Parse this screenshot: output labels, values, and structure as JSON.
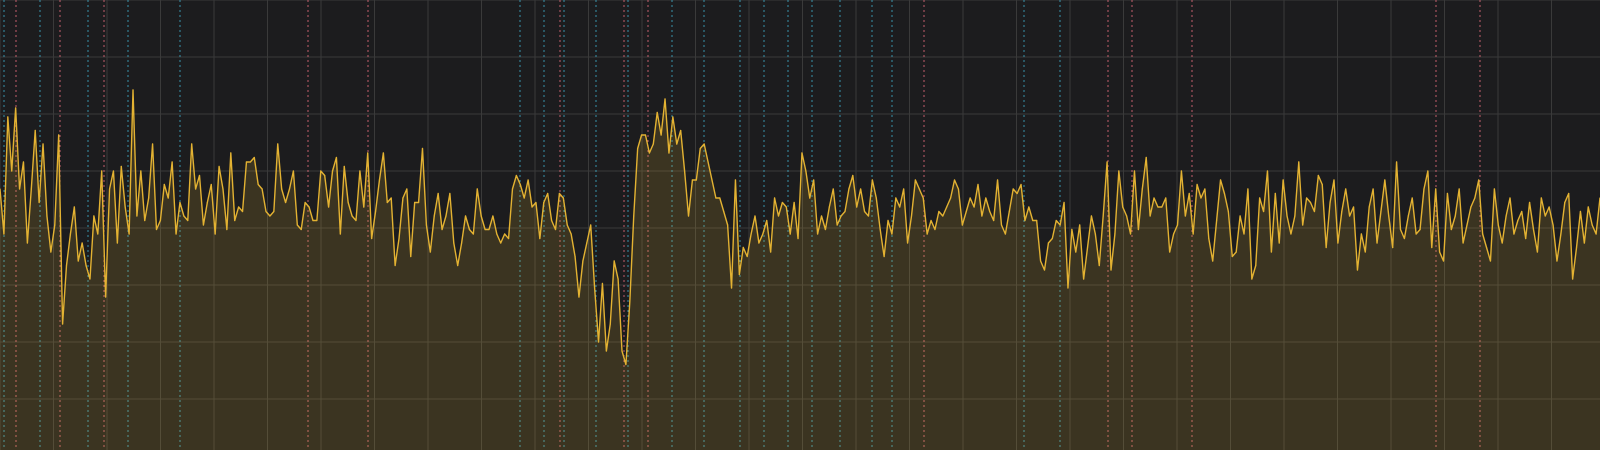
{
  "chart_data": {
    "type": "area",
    "title": "",
    "xlabel": "",
    "ylabel": "",
    "grid": true,
    "colors": {
      "background": "#1c1c1e",
      "grid": "#3a3a3a",
      "series": "#e3b232",
      "marker_a": "#e06a7a",
      "marker_b": "#3fa7c4"
    },
    "xlim": [
      0,
      400
    ],
    "ylim": [
      0,
      100
    ],
    "series": [
      {
        "values": [
          58,
          48,
          74,
          62,
          76,
          58,
          64,
          46,
          58,
          71,
          55,
          68,
          52,
          44,
          50,
          70,
          28,
          41,
          48,
          54,
          42,
          46,
          41,
          38,
          52,
          48,
          62,
          34,
          58,
          62,
          46,
          63,
          54,
          48,
          80,
          52,
          62,
          51,
          56,
          68,
          49,
          51,
          59,
          56,
          64,
          48,
          55,
          52,
          51,
          68,
          58,
          61,
          50,
          55,
          59,
          48,
          63,
          58,
          49,
          66,
          51,
          54,
          53,
          64,
          64,
          65,
          59,
          58,
          53,
          52,
          53,
          68,
          58,
          55,
          58,
          62,
          50,
          49,
          55,
          54,
          51,
          51,
          62,
          61,
          54,
          62,
          65,
          48,
          63,
          55,
          52,
          51,
          62,
          54,
          66,
          47,
          53,
          60,
          66,
          55,
          56,
          41,
          47,
          56,
          58,
          43,
          55,
          55,
          67,
          50,
          44,
          52,
          57,
          49,
          52,
          57,
          46,
          41,
          46,
          52,
          49,
          48,
          58,
          52,
          49,
          49,
          52,
          48,
          46,
          48,
          47,
          58,
          61,
          59,
          56,
          60,
          54,
          55,
          47,
          55,
          57,
          51,
          49,
          57,
          56,
          50,
          48,
          43,
          34,
          42,
          46,
          50,
          36,
          24,
          37,
          22,
          28,
          42,
          38,
          22,
          19,
          33,
          52,
          67,
          70,
          70,
          66,
          68,
          75,
          70,
          78,
          66,
          74,
          68,
          71,
          62,
          52,
          60,
          60,
          67,
          68,
          64,
          60,
          56,
          56,
          53,
          50,
          36,
          60,
          39,
          45,
          43,
          48,
          52,
          46,
          48,
          51,
          44,
          56,
          52,
          55,
          54,
          48,
          55,
          47,
          66,
          62,
          56,
          60,
          48,
          52,
          49,
          54,
          58,
          50,
          52,
          53,
          58,
          61,
          54,
          58,
          53,
          52,
          60,
          56,
          49,
          43,
          51,
          48,
          56,
          54,
          58,
          46,
          52,
          60,
          58,
          56,
          48,
          51,
          49,
          53,
          52,
          54,
          56,
          60,
          58,
          50,
          53,
          56,
          54,
          59,
          52,
          56,
          53,
          51,
          60,
          50,
          48,
          53,
          58,
          57,
          59,
          51,
          54,
          51,
          51,
          42,
          40,
          46,
          47,
          51,
          50,
          55,
          36,
          49,
          44,
          50,
          38,
          45,
          52,
          48,
          41,
          52,
          64,
          40,
          48,
          62,
          54,
          52,
          48,
          62,
          49,
          58,
          65,
          52,
          56,
          54,
          54,
          56,
          44,
          48,
          50,
          62,
          52,
          57,
          48,
          59,
          56,
          58,
          47,
          42,
          51,
          60,
          57,
          53,
          43,
          44,
          52,
          48,
          58,
          38,
          41,
          56,
          53,
          62,
          44,
          57,
          46,
          60,
          52,
          48,
          52,
          64,
          50,
          56,
          55,
          53,
          61,
          59,
          45,
          55,
          60,
          46,
          53,
          58,
          52,
          54,
          40,
          48,
          44,
          54,
          58,
          46,
          53,
          60,
          52,
          45,
          64,
          49,
          47,
          52,
          56,
          48,
          49,
          58,
          62,
          45,
          58,
          44,
          42,
          57,
          49,
          52,
          58,
          46,
          50,
          54,
          56,
          60,
          48,
          45,
          42,
          58,
          50,
          46,
          52,
          56,
          48,
          51,
          53,
          47,
          55,
          49,
          44,
          56,
          52,
          54,
          50,
          42,
          48,
          55,
          57,
          38,
          45,
          53,
          46,
          54,
          50,
          48,
          56
        ]
      }
    ],
    "marker_lines": {
      "type_a_x": [
        4,
        15,
        26,
        77,
        92,
        140,
        156,
        162,
        231,
        277,
        283,
        298,
        359,
        370
      ],
      "type_b_x": [
        1,
        10,
        22,
        32,
        45,
        130,
        136,
        141,
        149,
        157,
        168,
        176,
        185,
        191,
        197,
        203,
        210,
        218,
        223,
        256,
        265
      ]
    }
  }
}
